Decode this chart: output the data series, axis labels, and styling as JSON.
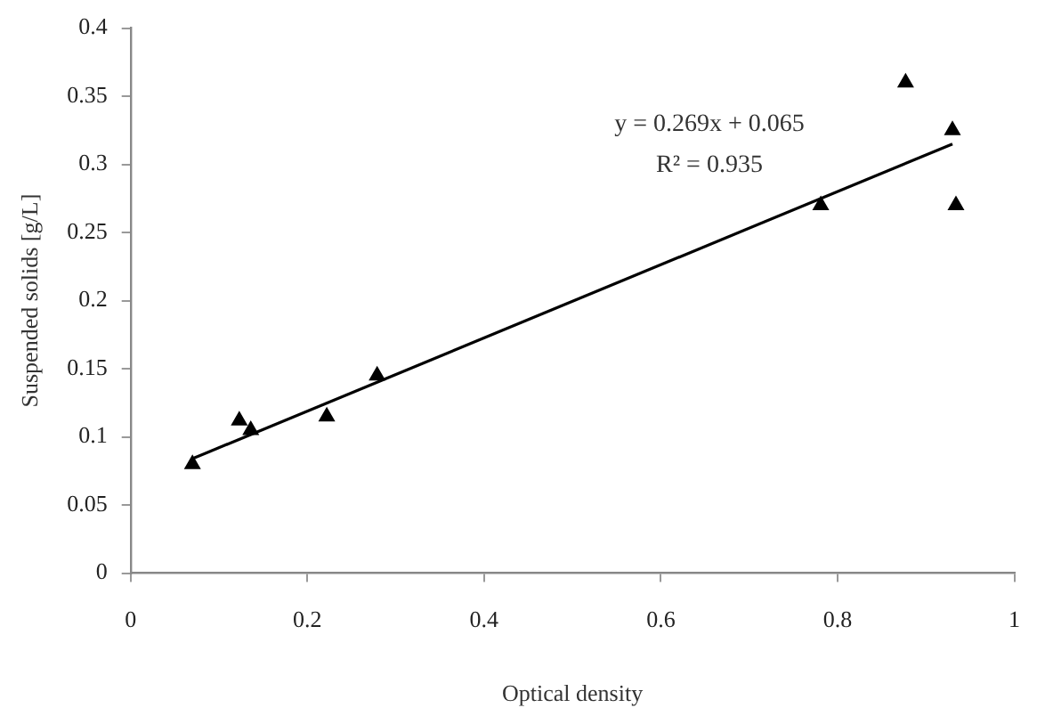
{
  "chart_data": {
    "type": "scatter",
    "xlabel": "Optical density",
    "ylabel": "Suspended solids [g/L]",
    "marker": "triangle",
    "series": [
      {
        "color": "#000000",
        "x": [
          0.07,
          0.123,
          0.136,
          0.222,
          0.279,
          0.781,
          0.877,
          0.93,
          0.934
        ],
        "values": [
          0.08,
          0.112,
          0.105,
          0.115,
          0.145,
          0.27,
          0.36,
          0.325,
          0.27
        ]
      },
      {
        "type": "line",
        "marker": "none",
        "color": "#000000",
        "x": [
          0.07,
          0.93
        ],
        "values": [
          0.084,
          0.315
        ]
      }
    ],
    "xlim": [
      0,
      1
    ],
    "xticks": [
      0,
      0.2,
      0.4,
      0.6,
      0.8,
      1
    ],
    "ylim": [
      0,
      0.4
    ],
    "yticks": [
      0,
      0.05,
      0.1,
      0.15,
      0.2,
      0.25,
      0.3,
      0.35,
      0.4
    ],
    "annotations": [
      "y = 0.269x + 0.065",
      "R² = 0.935"
    ]
  }
}
